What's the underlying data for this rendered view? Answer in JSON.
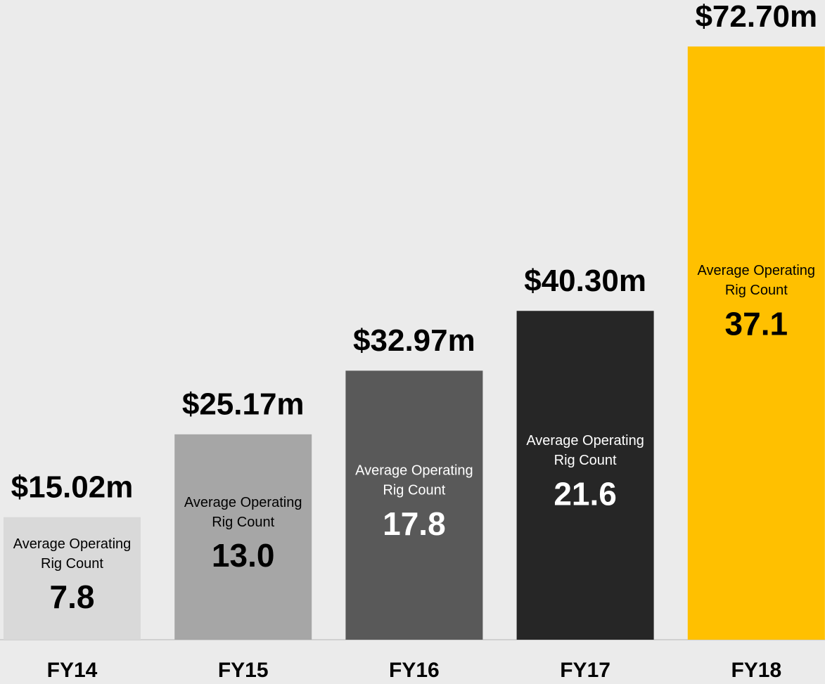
{
  "chart_data": {
    "type": "bar",
    "categories": [
      "FY14",
      "FY15",
      "FY16",
      "FY17",
      "FY18"
    ],
    "values": [
      15.02,
      25.17,
      32.97,
      40.3,
      72.7
    ],
    "value_labels": [
      "$15.02m",
      "$25.17m",
      "$32.97m",
      "$40.30m",
      "$72.70m"
    ],
    "colors": [
      "#d9d9d9",
      "#a6a6a6",
      "#595959",
      "#262626",
      "#ffc000"
    ],
    "ylim": [
      0,
      78.4
    ],
    "inner_label": "Average Operating Rig Count",
    "rig_counts": [
      "7.8",
      "13.0",
      "17.8",
      "21.6",
      "37.1"
    ]
  }
}
